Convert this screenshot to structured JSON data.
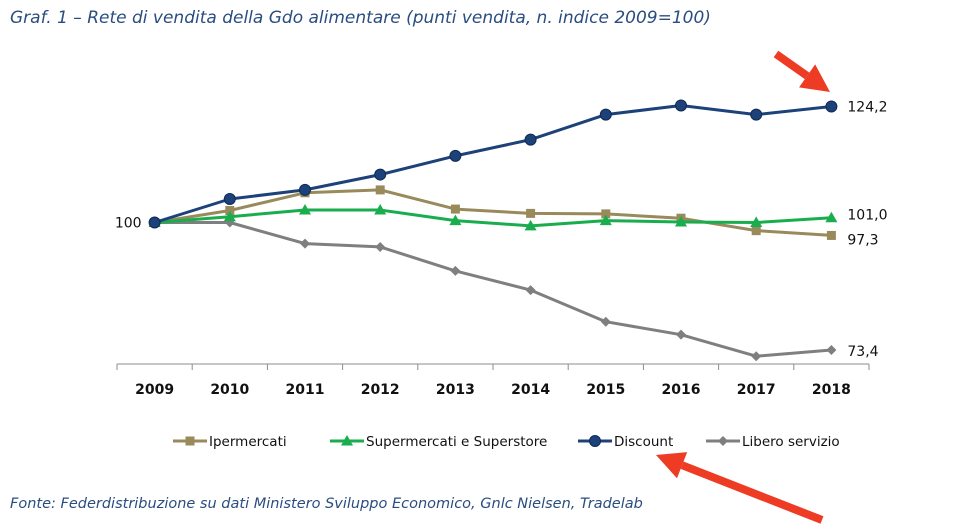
{
  "chart_data": {
    "type": "line",
    "title": "Graf. 1 – Rete di vendita della Gdo alimentare (punti vendita, n. indice 2009=100)",
    "source": "Fonte: Federdistribuzione su dati Ministero Sviluppo Economico, Gnlc Nielsen, Tradelab",
    "x": [
      "2009",
      "2010",
      "2011",
      "2012",
      "2013",
      "2014",
      "2015",
      "2016",
      "2017",
      "2018"
    ],
    "xlabel": "",
    "ylabel": "",
    "ylim": [
      70,
      128
    ],
    "grid": false,
    "legend_position": "bottom",
    "start_label": "100",
    "series": [
      {
        "name": "Ipermercati",
        "color": "#998a5c",
        "marker": "square",
        "values": [
          100,
          102.5,
          106.2,
          106.8,
          102.8,
          101.9,
          101.8,
          100.9,
          98.3,
          97.3
        ],
        "end_label": "97,3"
      },
      {
        "name": "Supermercati e Superstore",
        "color": "#1aad4e",
        "marker": "triangle",
        "values": [
          100,
          101.2,
          102.6,
          102.6,
          100.4,
          99.3,
          100.4,
          100.1,
          100.0,
          101.0
        ],
        "end_label": "101,0"
      },
      {
        "name": "Discount",
        "color": "#1c4279",
        "marker": "circle",
        "values": [
          100,
          104.9,
          106.8,
          110.0,
          113.9,
          117.3,
          122.5,
          124.4,
          122.5,
          124.2
        ],
        "end_label": "124,2"
      },
      {
        "name": "Libero servizio",
        "color": "#7f7f7f",
        "marker": "diamond",
        "values": [
          100,
          100.0,
          95.6,
          94.9,
          89.9,
          85.9,
          79.3,
          76.6,
          72.1,
          73.4
        ],
        "end_label": "73,4"
      }
    ],
    "annotations": [
      {
        "type": "arrow",
        "color": "#ee3b24",
        "points_to": "Discount 2018 value"
      },
      {
        "type": "arrow",
        "color": "#ee3b24",
        "points_to": "Discount legend entry"
      }
    ]
  }
}
